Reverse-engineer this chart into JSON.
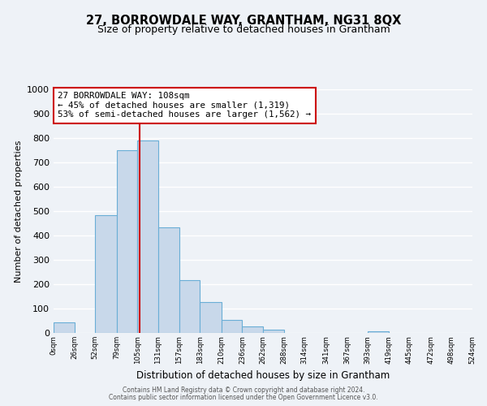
{
  "title": "27, BORROWDALE WAY, GRANTHAM, NG31 8QX",
  "subtitle": "Size of property relative to detached houses in Grantham",
  "xlabel": "Distribution of detached houses by size in Grantham",
  "ylabel": "Number of detached properties",
  "bin_edges": [
    0,
    26,
    52,
    79,
    105,
    131,
    157,
    183,
    210,
    236,
    262,
    288,
    314,
    341,
    367,
    393,
    419,
    445,
    472,
    498,
    524
  ],
  "bin_labels": [
    "0sqm",
    "26sqm",
    "52sqm",
    "79sqm",
    "105sqm",
    "131sqm",
    "157sqm",
    "183sqm",
    "210sqm",
    "236sqm",
    "262sqm",
    "288sqm",
    "314sqm",
    "341sqm",
    "367sqm",
    "393sqm",
    "419sqm",
    "445sqm",
    "472sqm",
    "498sqm",
    "524sqm"
  ],
  "bar_heights": [
    44,
    0,
    484,
    750,
    790,
    434,
    218,
    126,
    54,
    28,
    14,
    0,
    0,
    0,
    0,
    8,
    0,
    0,
    0,
    0
  ],
  "bar_color": "#c8d8ea",
  "bar_edge_color": "#6aaed6",
  "property_size": 108,
  "vline_color": "#cc0000",
  "annotation_line1": "27 BORROWDALE WAY: 108sqm",
  "annotation_line2": "← 45% of detached houses are smaller (1,319)",
  "annotation_line3": "53% of semi-detached houses are larger (1,562) →",
  "annotation_box_color": "#ffffff",
  "annotation_border_color": "#cc0000",
  "ylim": [
    0,
    1000
  ],
  "yticks": [
    0,
    100,
    200,
    300,
    400,
    500,
    600,
    700,
    800,
    900,
    1000
  ],
  "footer1": "Contains HM Land Registry data © Crown copyright and database right 2024.",
  "footer2": "Contains public sector information licensed under the Open Government Licence v3.0.",
  "background_color": "#eef2f7",
  "grid_color": "#ffffff",
  "title_fontsize": 10.5,
  "subtitle_fontsize": 9
}
